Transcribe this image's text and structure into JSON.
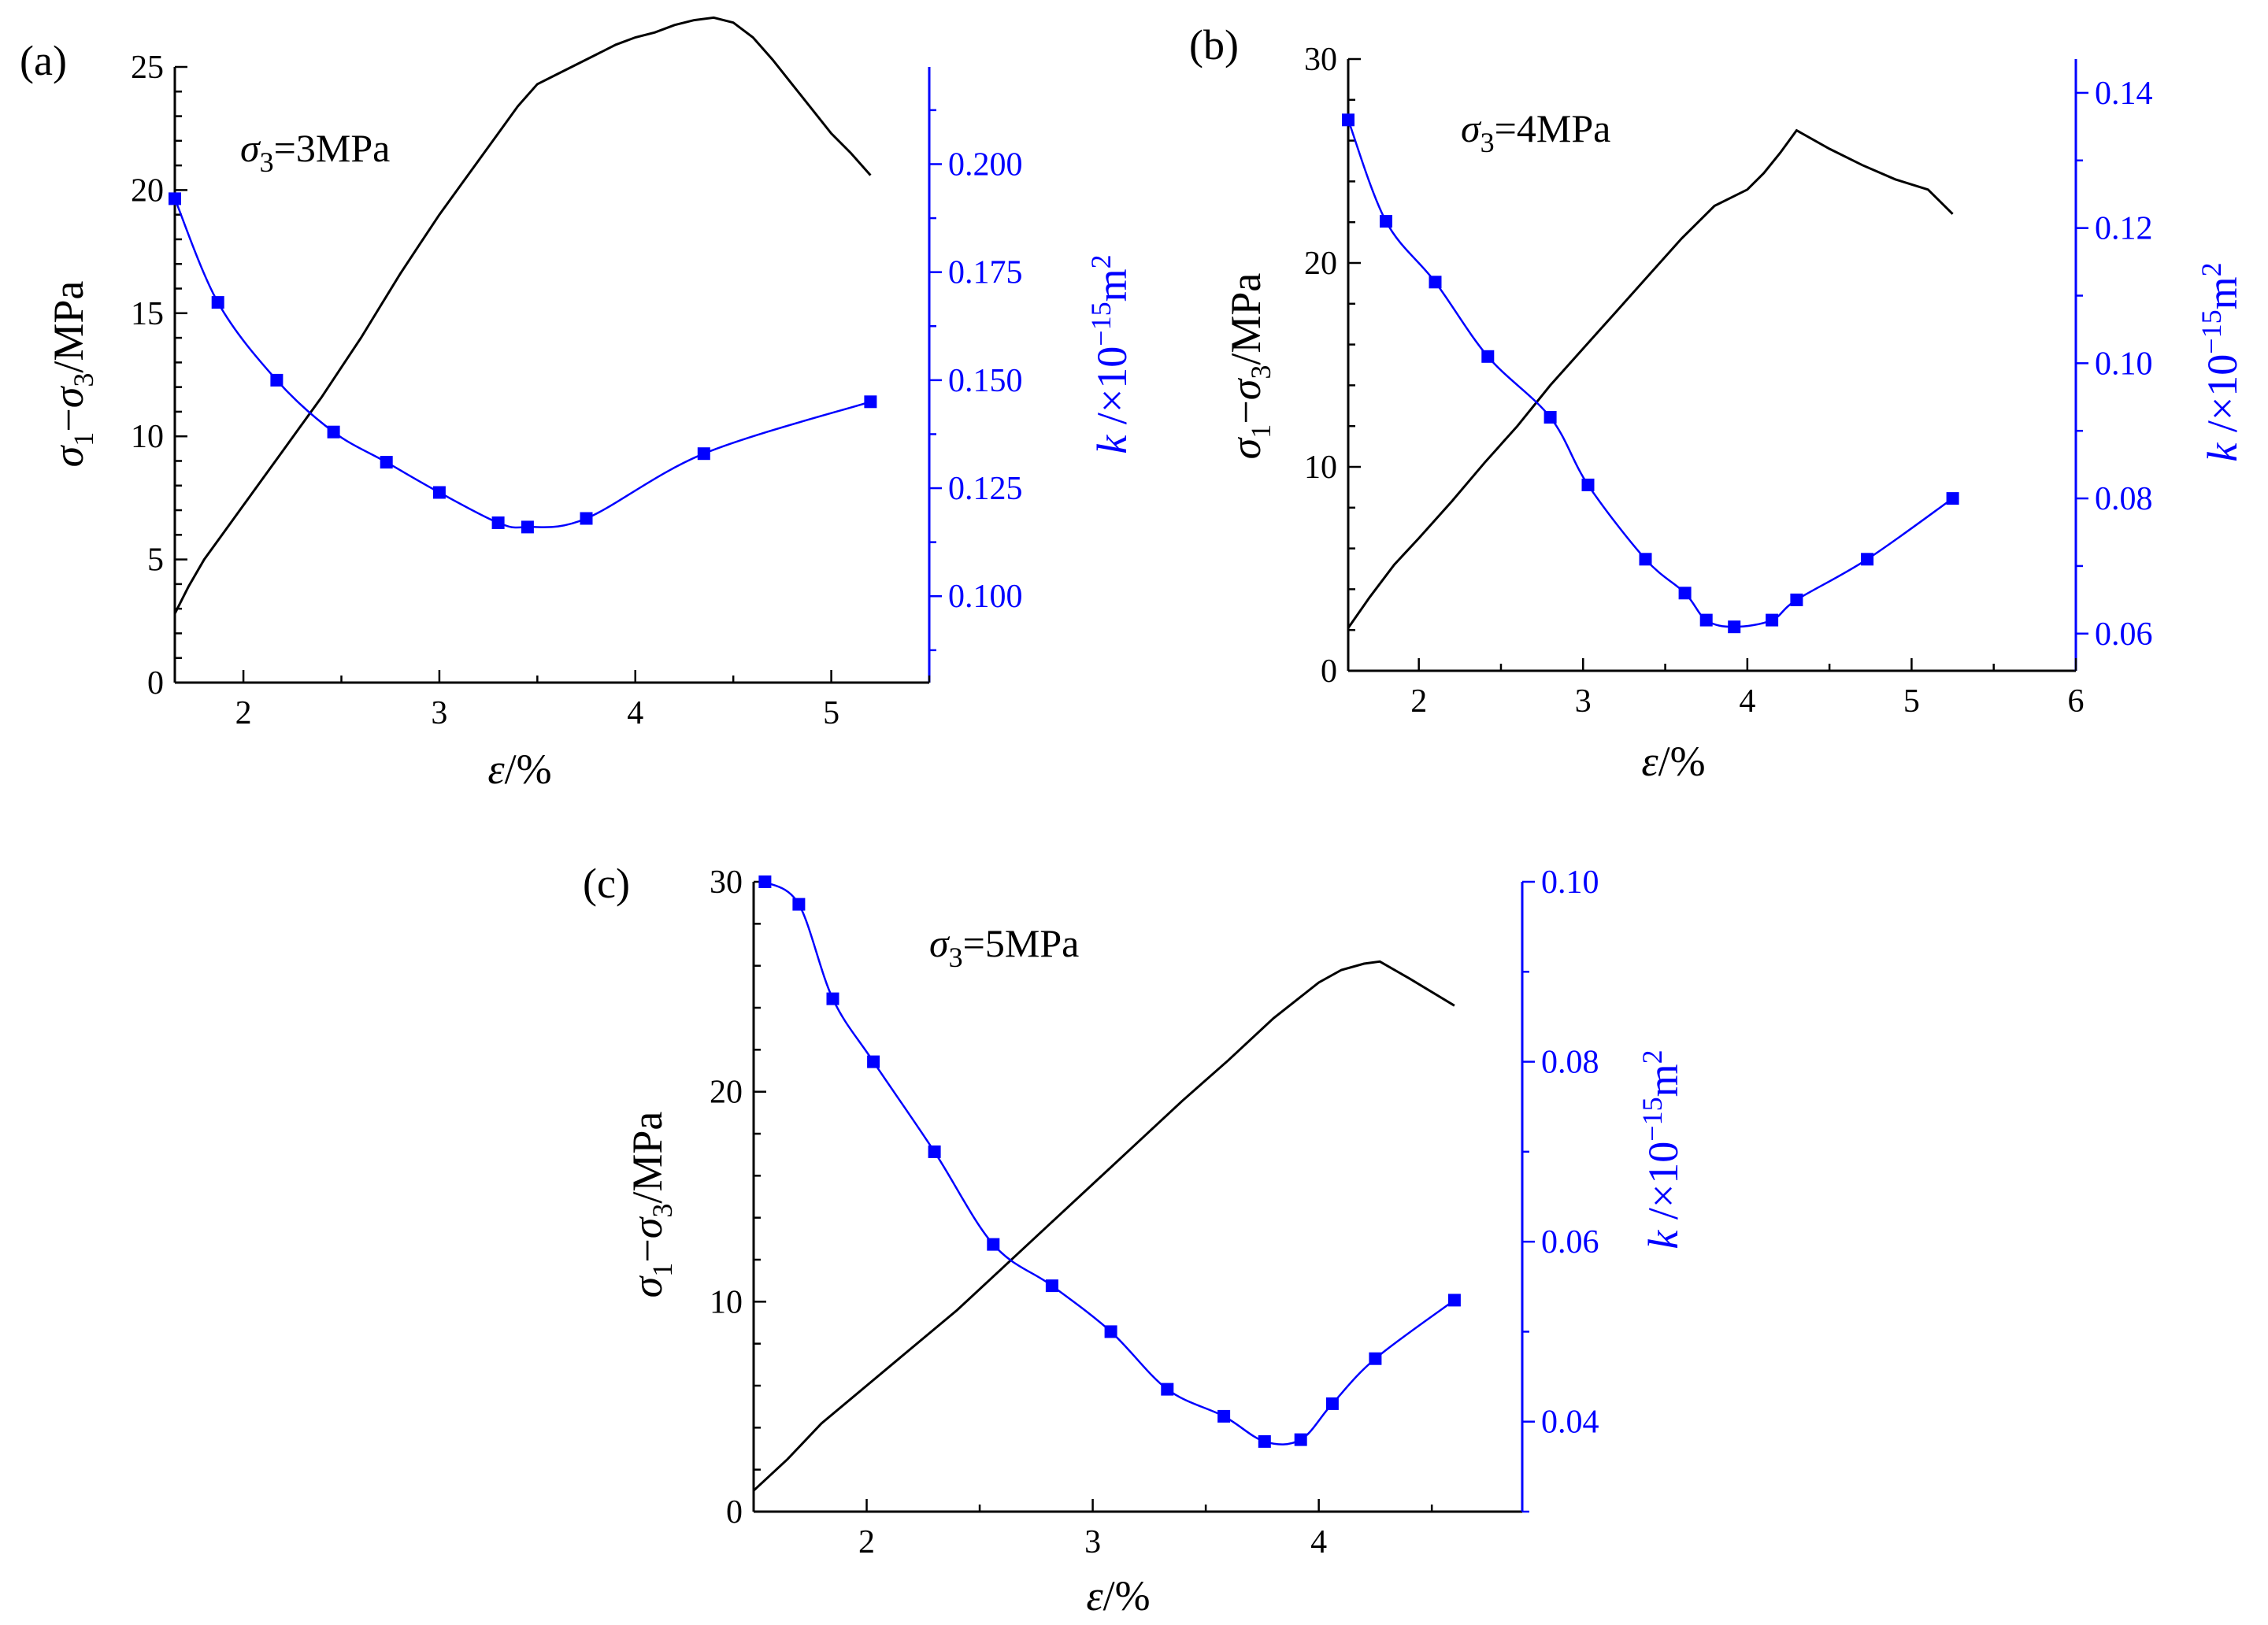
{
  "chart_data": [
    {
      "type": "line",
      "panel_label": "(a)",
      "annotation": {
        "symbol": "σ",
        "sub": "3",
        "text": "=3MPa"
      },
      "xlabel": {
        "symbol": "ε",
        "text": "/%"
      },
      "ylabel_left": {
        "s1": "σ",
        "sub1": "1",
        "op": "−",
        "s2": "σ",
        "sub2": "3",
        "unit": "/MPa"
      },
      "ylabel_right": {
        "k": "k",
        "mid": " /×10",
        "exp": "−15",
        "unit": "m",
        "unit_exp": "2"
      },
      "xlim": [
        1.65,
        5.5
      ],
      "ylim_left": [
        0,
        25
      ],
      "ylim_right": [
        0.08,
        0.2225
      ],
      "x_ticks": [
        2,
        3,
        4,
        5
      ],
      "y_left_ticks": [
        0,
        5,
        10,
        15,
        20,
        25
      ],
      "y_right_ticks": [
        0.1,
        0.125,
        0.15,
        0.175,
        0.2
      ],
      "y_right_tick_labels": [
        "0.100",
        "0.125",
        "0.150",
        "0.175",
        "0.200"
      ],
      "series": [
        {
          "name": "σ1−σ3",
          "axis": "left",
          "color": "#000000",
          "markers": false,
          "x": [
            1.65,
            1.72,
            1.8,
            1.9,
            2.0,
            2.1,
            2.2,
            2.3,
            2.4,
            2.5,
            2.6,
            2.7,
            2.8,
            2.9,
            3.0,
            3.1,
            3.2,
            3.3,
            3.4,
            3.5,
            3.6,
            3.7,
            3.8,
            3.9,
            4.0,
            4.1,
            4.2,
            4.3,
            4.4,
            4.5,
            4.6,
            4.7,
            4.8,
            4.9,
            5.0,
            5.1,
            5.2
          ],
          "y": [
            2.8,
            3.9,
            5.0,
            6.1,
            7.2,
            8.3,
            9.4,
            10.5,
            11.6,
            12.8,
            14.0,
            15.3,
            16.6,
            17.8,
            19.0,
            20.1,
            21.2,
            22.3,
            23.4,
            24.3,
            24.7,
            25.1,
            25.5,
            25.9,
            26.2,
            26.4,
            26.7,
            26.9,
            27.0,
            26.8,
            26.2,
            25.3,
            24.3,
            23.3,
            22.3,
            21.5,
            20.6
          ]
        }
      ],
      "series_k": [
        {
          "name": "k",
          "axis": "right",
          "color": "#0000ff",
          "markers": true,
          "x": [
            1.65,
            1.87,
            2.17,
            2.46,
            2.73,
            3.0,
            3.3,
            3.45,
            3.75,
            4.35,
            5.2
          ],
          "y": [
            0.192,
            0.168,
            0.15,
            0.138,
            0.131,
            0.124,
            0.117,
            0.116,
            0.118,
            0.133,
            0.145
          ]
        }
      ]
    },
    {
      "type": "line",
      "panel_label": "(b)",
      "annotation": {
        "symbol": "σ",
        "sub": "3",
        "text": "=4MPa"
      },
      "xlabel": {
        "symbol": "ε",
        "text": "/%"
      },
      "ylabel_left": {
        "s1": "σ",
        "sub1": "1",
        "op": "−",
        "s2": "σ",
        "sub2": "3",
        "unit": "/MPa"
      },
      "ylabel_right": {
        "k": "k",
        "mid": " /×10",
        "exp": "−15",
        "unit": "m",
        "unit_exp": "2"
      },
      "xlim": [
        1.57,
        6
      ],
      "ylim_left": [
        0,
        30
      ],
      "ylim_right": [
        0.0545,
        0.145
      ],
      "x_ticks": [
        2,
        3,
        4,
        5,
        6
      ],
      "y_left_ticks": [
        0,
        10,
        20,
        30
      ],
      "y_right_ticks": [
        0.06,
        0.08,
        0.1,
        0.12,
        0.14
      ],
      "y_right_tick_labels": [
        "0.06",
        "0.08",
        "0.10",
        "0.12",
        "0.14"
      ],
      "series": [
        {
          "name": "σ1−σ3",
          "axis": "left",
          "color": "#000000",
          "markers": false,
          "x": [
            1.57,
            1.7,
            1.85,
            2.0,
            2.2,
            2.4,
            2.6,
            2.8,
            3.0,
            3.2,
            3.4,
            3.6,
            3.8,
            4.0,
            4.1,
            4.2,
            4.3,
            4.5,
            4.7,
            4.9,
            5.1,
            5.25
          ],
          "y": [
            2.1,
            3.6,
            5.2,
            6.5,
            8.3,
            10.2,
            12.0,
            14.0,
            15.8,
            17.6,
            19.4,
            21.2,
            22.8,
            23.6,
            24.4,
            25.4,
            26.5,
            25.6,
            24.8,
            24.1,
            23.6,
            22.4
          ]
        }
      ],
      "series_k": [
        {
          "name": "k",
          "axis": "right",
          "color": "#0000ff",
          "markers": true,
          "x": [
            1.57,
            1.8,
            2.1,
            2.42,
            2.8,
            3.03,
            3.38,
            3.62,
            3.75,
            3.92,
            4.15,
            4.3,
            4.73,
            5.25
          ],
          "y": [
            0.136,
            0.121,
            0.112,
            0.101,
            0.092,
            0.082,
            0.071,
            0.066,
            0.062,
            0.061,
            0.062,
            0.065,
            0.071,
            0.08
          ]
        }
      ]
    },
    {
      "type": "line",
      "panel_label": "(c)",
      "annotation": {
        "symbol": "σ",
        "sub": "3",
        "text": "=5MPa"
      },
      "xlabel": {
        "symbol": "ε",
        "text": "/%"
      },
      "ylabel_left": {
        "s1": "σ",
        "sub1": "1",
        "op": "−",
        "s2": "σ",
        "sub2": "3",
        "unit": "/MPa"
      },
      "ylabel_right": {
        "k": "k",
        "mid": " /×10",
        "exp": "−15",
        "unit": "m",
        "unit_exp": "2"
      },
      "xlim": [
        1.5,
        4.9
      ],
      "ylim_left": [
        0,
        30
      ],
      "ylim_right": [
        0.03,
        0.1
      ],
      "x_ticks": [
        2,
        3,
        4
      ],
      "y_left_ticks": [
        0,
        10,
        20,
        30
      ],
      "y_right_ticks": [
        0.04,
        0.06,
        0.08,
        0.1
      ],
      "y_right_tick_labels": [
        "0.04",
        "0.06",
        "0.08",
        "0.10"
      ],
      "series": [
        {
          "name": "σ1−σ3",
          "axis": "left",
          "color": "#000000",
          "markers": false,
          "x": [
            1.5,
            1.65,
            1.8,
            2.0,
            2.2,
            2.4,
            2.6,
            2.8,
            3.0,
            3.2,
            3.4,
            3.6,
            3.8,
            4.0,
            4.1,
            4.2,
            4.27,
            4.4,
            4.6
          ],
          "y": [
            1.0,
            2.5,
            4.2,
            6.0,
            7.8,
            9.6,
            11.6,
            13.6,
            15.6,
            17.6,
            19.6,
            21.5,
            23.5,
            25.2,
            25.8,
            26.1,
            26.2,
            25.4,
            24.1
          ]
        }
      ],
      "series_k": [
        {
          "name": "k",
          "axis": "right",
          "color": "#0000ff",
          "markers": true,
          "x": [
            1.55,
            1.7,
            1.85,
            2.03,
            2.3,
            2.56,
            2.82,
            3.08,
            3.33,
            3.58,
            3.76,
            3.92,
            4.06,
            4.25,
            4.6
          ],
          "y": [
            0.1,
            0.0975,
            0.087,
            0.08,
            0.07,
            0.0597,
            0.0551,
            0.05,
            0.0436,
            0.0406,
            0.0378,
            0.038,
            0.042,
            0.047,
            0.0535
          ]
        }
      ]
    }
  ]
}
